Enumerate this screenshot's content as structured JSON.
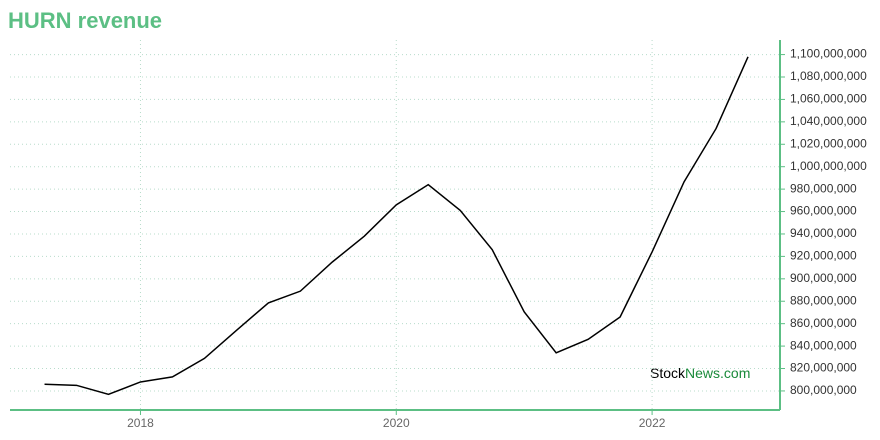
{
  "chart_data": {
    "type": "line",
    "title": "HURN revenue",
    "x": [
      2017.25,
      2017.5,
      2017.75,
      2018,
      2018.25,
      2018.5,
      2018.75,
      2019,
      2019.25,
      2019.5,
      2019.75,
      2020,
      2020.25,
      2020.5,
      2020.75,
      2021,
      2021.25,
      2021.5,
      2021.75,
      2022,
      2022.25,
      2022.5,
      2022.75
    ],
    "series": [
      {
        "name": "HURN revenue",
        "color": "#000000",
        "values": [
          806000000,
          805000000,
          797000000,
          808000000,
          812500000,
          829000000,
          854000000,
          878500000,
          889000000,
          915000000,
          938000000,
          966000000,
          984000000,
          961000000,
          926000000,
          870500000,
          834000000,
          846000000,
          866000000,
          924000000,
          986500000,
          1034000000,
          1098000000
        ]
      }
    ],
    "xlim": [
      2016.98,
      2023
    ],
    "xticks": [
      2018,
      2020,
      2022
    ],
    "ylim": [
      783000000,
      1113000000
    ],
    "yticks": [
      {
        "value": 800000000,
        "label": "800,000,000"
      },
      {
        "value": 820000000,
        "label": "820,000,000"
      },
      {
        "value": 840000000,
        "label": "840,000,000"
      },
      {
        "value": 860000000,
        "label": "860,000,000"
      },
      {
        "value": 880000000,
        "label": "880,000,000"
      },
      {
        "value": 900000000,
        "label": "900,000,000"
      },
      {
        "value": 920000000,
        "label": "920,000,000"
      },
      {
        "value": 940000000,
        "label": "940,000,000"
      },
      {
        "value": 960000000,
        "label": "960,000,000"
      },
      {
        "value": 980000000,
        "label": "980,000,000"
      },
      {
        "value": 1000000000,
        "label": "1,000,000,000"
      },
      {
        "value": 1020000000,
        "label": "1,020,000,000"
      },
      {
        "value": 1040000000,
        "label": "1,040,000,000"
      },
      {
        "value": 1060000000,
        "label": "1,060,000,000"
      },
      {
        "value": 1080000000,
        "label": "1,080,000,000"
      },
      {
        "value": 1100000000,
        "label": "1,100,000,000"
      }
    ],
    "grid": true,
    "axis_color": "#5cbf84",
    "watermark": [
      "Stock",
      "News.com"
    ]
  }
}
